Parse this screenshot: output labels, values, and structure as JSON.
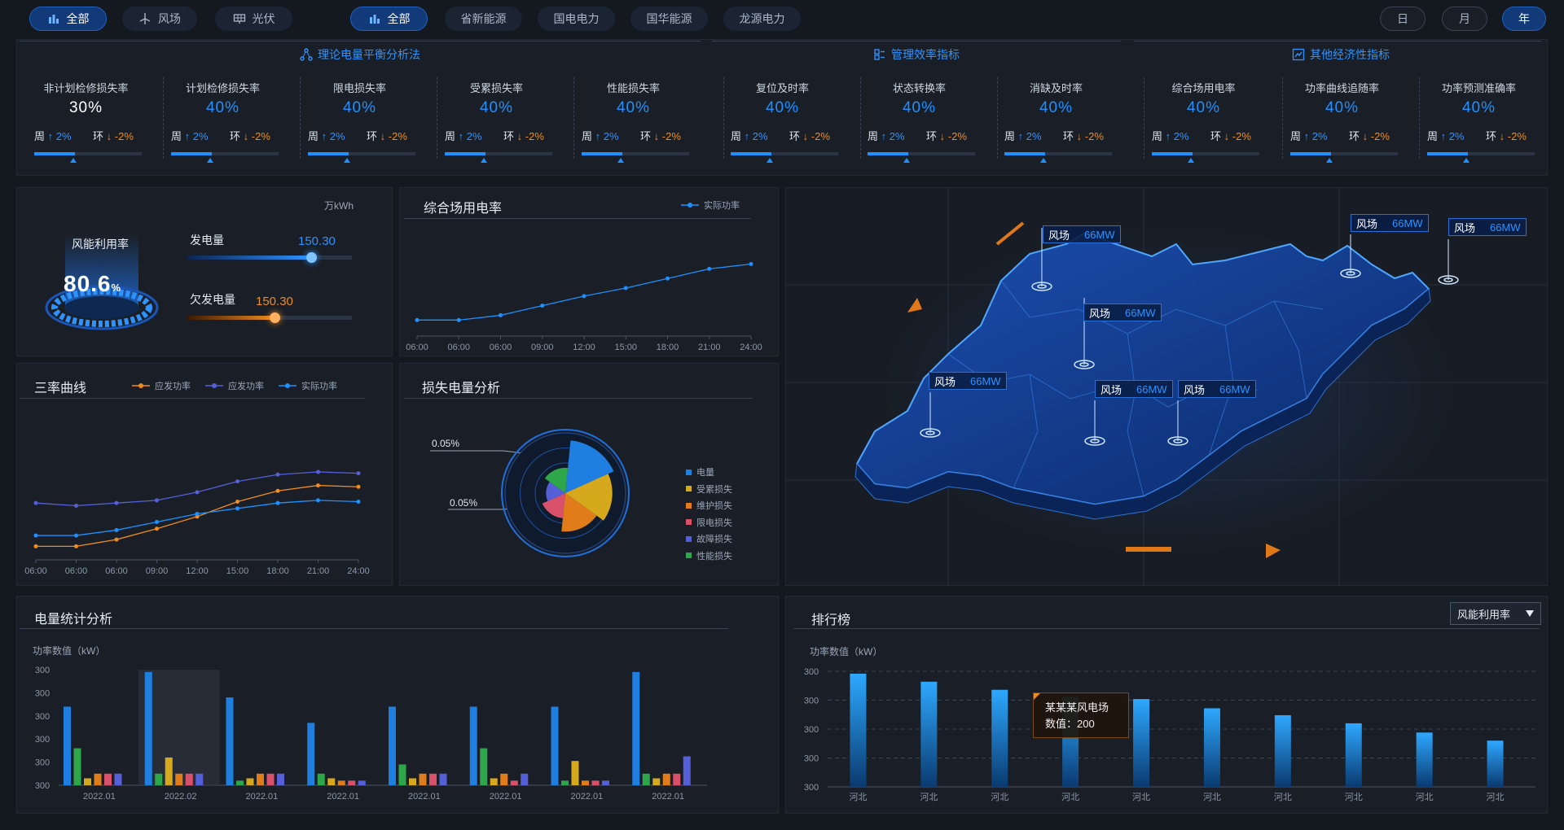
{
  "filters_left": [
    {
      "label": "全部",
      "icon": "bar-building-icon",
      "active": true
    },
    {
      "label": "风场",
      "icon": "wind-turbine-icon",
      "active": false
    },
    {
      "label": "光伏",
      "icon": "solar-panel-icon",
      "active": false
    }
  ],
  "filters_company": [
    {
      "label": "全部",
      "icon": "bar-building-icon",
      "active": true
    },
    {
      "label": "省新能源",
      "active": false
    },
    {
      "label": "国电电力",
      "active": false
    },
    {
      "label": "国华能源",
      "active": false
    },
    {
      "label": "龙源电力",
      "active": false
    }
  ],
  "period": [
    {
      "label": "日",
      "active": false
    },
    {
      "label": "月",
      "active": false
    },
    {
      "label": "年",
      "active": true
    }
  ],
  "kpi_sections": [
    {
      "title": "理论电量平衡分析法",
      "icon": "nodes-icon"
    },
    {
      "title": "管理效率指标",
      "icon": "org-icon"
    },
    {
      "title": "其他经济性指标",
      "icon": "trend-icon"
    }
  ],
  "kpis": [
    {
      "name": "非计划检修损失率",
      "value": "30%",
      "white": true,
      "week_label": "周",
      "week": "2%",
      "ring_label": "环",
      "ring": "-2%",
      "progress": 0.38
    },
    {
      "name": "计划检修损失率",
      "value": "40%",
      "week_label": "周",
      "week": "2%",
      "ring_label": "环",
      "ring": "-2%",
      "progress": 0.38
    },
    {
      "name": "限电损失率",
      "value": "40%",
      "week_label": "周",
      "week": "2%",
      "ring_label": "环",
      "ring": "-2%",
      "progress": 0.38
    },
    {
      "name": "受累损失率",
      "value": "40%",
      "week_label": "周",
      "week": "2%",
      "ring_label": "环",
      "ring": "-2%",
      "progress": 0.38
    },
    {
      "name": "性能损失率",
      "value": "40%",
      "week_label": "周",
      "week": "2%",
      "ring_label": "环",
      "ring": "-2%",
      "progress": 0.38
    },
    {
      "name": "复位及时率",
      "value": "40%",
      "week_label": "周",
      "week": "2%",
      "ring_label": "环",
      "ring": "-2%",
      "progress": 0.38
    },
    {
      "name": "状态转换率",
      "value": "40%",
      "week_label": "周",
      "week": "2%",
      "ring_label": "环",
      "ring": "-2%",
      "progress": 0.38
    },
    {
      "name": "消缺及时率",
      "value": "40%",
      "week_label": "周",
      "week": "2%",
      "ring_label": "环",
      "ring": "-2%",
      "progress": 0.38
    },
    {
      "name": "综合场用电率",
      "value": "40%",
      "week_label": "周",
      "week": "2%",
      "ring_label": "环",
      "ring": "-2%",
      "progress": 0.38
    },
    {
      "name": "功率曲线追随率",
      "value": "40%",
      "week_label": "周",
      "week": "2%",
      "ring_label": "环",
      "ring": "-2%",
      "progress": 0.38
    },
    {
      "name": "功率预测准确率",
      "value": "40%",
      "week_label": "周",
      "week": "2%",
      "ring_label": "环",
      "ring": "-2%",
      "progress": 0.38
    }
  ],
  "wind": {
    "unit": "万kWh",
    "gauge_label": "风能利用率",
    "gauge_value": "80.6",
    "gauge_unit": "%",
    "gen_label": "发电量",
    "gen_value": "150.30",
    "gen_level": 0.75,
    "short_label": "欠发电量",
    "short_value": "150.30",
    "short_level": 0.53
  },
  "station_power": {
    "title": "综合场用电率",
    "legend": "实际功率",
    "chart_data": {
      "type": "line",
      "x": [
        "06:00",
        "06:00",
        "06:00",
        "09:00",
        "12:00",
        "15:00",
        "18:00",
        "21:00",
        "24:00"
      ],
      "series": [
        {
          "name": "实际功率",
          "values": [
            1.0,
            1.0,
            1.3,
            1.9,
            2.5,
            3.0,
            3.6,
            4.2,
            4.5
          ]
        }
      ],
      "ylim": [
        0,
        6
      ]
    }
  },
  "three_rate": {
    "title": "三率曲线",
    "legend": [
      "应发功率",
      "应发功率",
      "实际功率"
    ],
    "colors": [
      "#f08c1e",
      "#5560d8",
      "#1e90ff"
    ],
    "chart_data": {
      "type": "line",
      "x": [
        "06:00",
        "06:00",
        "06:00",
        "09:00",
        "12:00",
        "15:00",
        "18:00",
        "21:00",
        "24:00"
      ],
      "series": [
        {
          "name": "应发功率",
          "values": [
            1.0,
            1.0,
            1.5,
            2.3,
            3.2,
            4.3,
            5.1,
            5.5,
            5.4
          ]
        },
        {
          "name": "应发功率",
          "values": [
            4.2,
            4.0,
            4.2,
            4.4,
            5.0,
            5.8,
            6.3,
            6.5,
            6.4
          ]
        },
        {
          "name": "实际功率",
          "values": [
            1.8,
            1.8,
            2.2,
            2.8,
            3.4,
            3.8,
            4.2,
            4.4,
            4.3
          ]
        }
      ],
      "ylim": [
        0,
        8
      ]
    }
  },
  "loss": {
    "title": "损失电量分析",
    "ann_top": "0.05%",
    "ann_bottom": "0.05%",
    "legend": [
      "电量",
      "受累损失",
      "维护损失",
      "限电损失",
      "故障损失",
      "性能损失"
    ],
    "chart_data": {
      "type": "pie",
      "labels": [
        "电量",
        "受累损失",
        "维护损失",
        "限电损失",
        "故障损失",
        "性能损失"
      ],
      "values": [
        60,
        60,
        60,
        60,
        60,
        60
      ],
      "radius": [
        0.88,
        0.78,
        0.64,
        0.42,
        0.32,
        0.42
      ],
      "colors": [
        "#1e7fe0",
        "#d6a91c",
        "#e07d1a",
        "#d8506a",
        "#5560d8",
        "#2ea64a"
      ]
    }
  },
  "map": {
    "labels": [
      {
        "name": "风场",
        "value": "66MW"
      },
      {
        "name": "风场",
        "value": "66MW"
      },
      {
        "name": "风场",
        "value": "66MW"
      },
      {
        "name": "风场",
        "value": "66MW"
      },
      {
        "name": "风场",
        "value": "66MW"
      },
      {
        "name": "风场",
        "value": "66MW"
      },
      {
        "name": "风场",
        "value": "66MW"
      }
    ]
  },
  "energy_stats": {
    "title": "电量统计分析",
    "y_unit": "功率数值（kW）",
    "y_ticks": [
      "300",
      "300",
      "300",
      "300",
      "300",
      "300"
    ],
    "chart_data": {
      "type": "bar",
      "categories": [
        "2022.01",
        "2022.02",
        "2022.01",
        "2022.01",
        "2022.01",
        "2022.01",
        "2022.01",
        "2022.01"
      ],
      "series": [
        {
          "color": "#1e7fe0",
          "values": [
            68,
            98,
            76,
            54,
            68,
            68,
            68,
            98
          ]
        },
        {
          "color": "#2ea64a",
          "values": [
            32,
            10,
            4,
            10,
            18,
            32,
            4,
            10
          ]
        },
        {
          "color": "#d6a91c",
          "values": [
            6,
            24,
            6,
            6,
            6,
            6,
            21,
            6
          ]
        },
        {
          "color": "#e07d1a",
          "values": [
            10,
            10,
            10,
            4,
            10,
            10,
            4,
            10
          ]
        },
        {
          "color": "#d8506a",
          "values": [
            10,
            10,
            10,
            4,
            10,
            4,
            4,
            10
          ]
        },
        {
          "color": "#5560d8",
          "values": [
            10,
            10,
            10,
            4,
            10,
            10,
            4,
            25
          ]
        }
      ],
      "highlight_index": 1
    }
  },
  "ranking": {
    "title": "排行榜",
    "select": "风能利用率",
    "y_unit": "功率数值（kW）",
    "y_ticks": [
      "300",
      "300",
      "300",
      "300",
      "300"
    ],
    "tooltip_name": "某某某风电场",
    "tooltip_value": "数值：200",
    "chart_data": {
      "type": "bar",
      "categories": [
        "河北",
        "河北",
        "河北",
        "河北",
        "河北",
        "河北",
        "河北",
        "河北",
        "河北",
        "河北"
      ],
      "values": [
        98,
        91,
        84,
        78,
        76,
        68,
        62,
        55,
        47,
        40
      ]
    }
  }
}
